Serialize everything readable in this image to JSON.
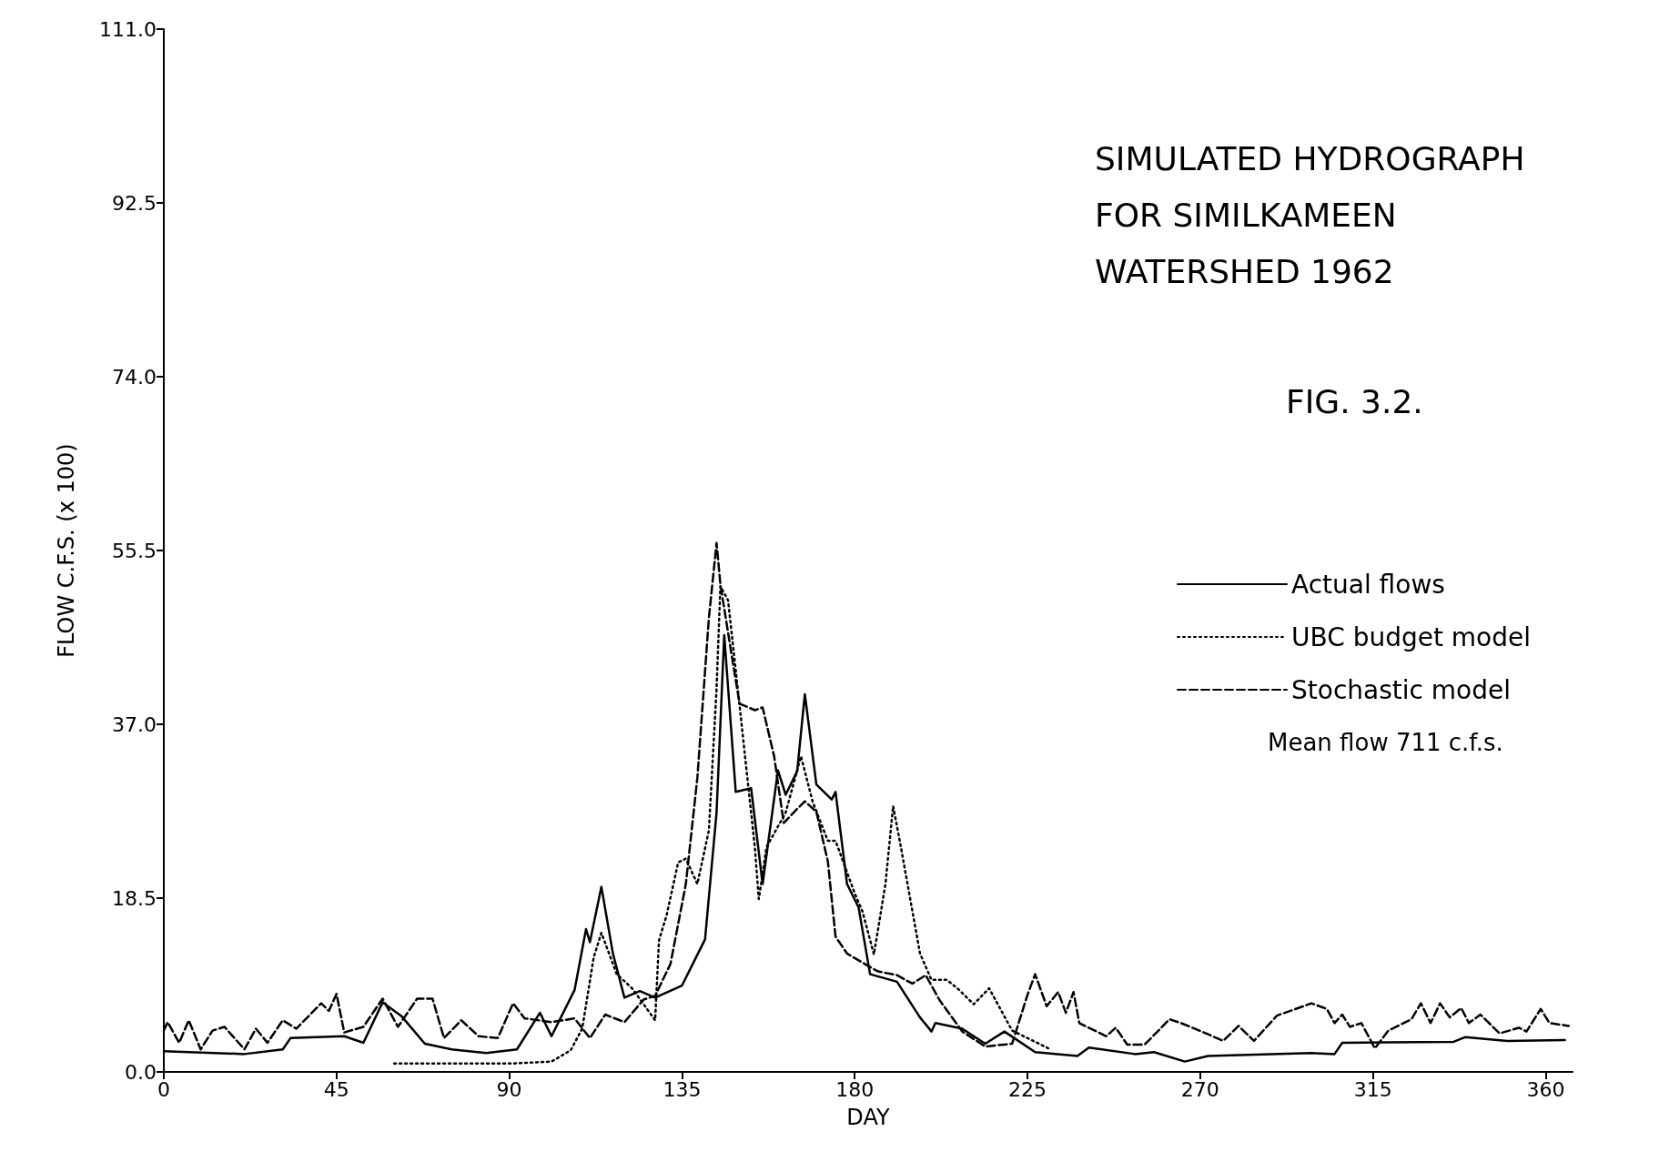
{
  "chart_data": {
    "type": "line",
    "title": "SIMULATED HYDROGRAPH FOR SIMILKAMEEN WATERSHED 1962",
    "subtitle": "FIG. 3.2.",
    "xlabel": "DAY",
    "ylabel": "FLOW C.F.S. (x 100)",
    "annotations": [
      "Mean flow 711 c.f.s."
    ],
    "xlim": [
      0,
      367
    ],
    "xticks": [
      0,
      45,
      90,
      135,
      180,
      225,
      270,
      315,
      360
    ],
    "ylim": [
      0,
      111
    ],
    "yticks": [
      {
        "value": 0,
        "label": "0.0"
      },
      {
        "value": 18.5,
        "label": "18.5"
      },
      {
        "value": 37,
        "label": "37.0"
      },
      {
        "value": 55.5,
        "label": "55.5"
      },
      {
        "value": 74,
        "label": "74.0"
      },
      {
        "value": 92.5,
        "label": "92.5"
      },
      {
        "value": 111,
        "label": "111.0"
      }
    ],
    "grid": false,
    "legend": "right",
    "marker": "none",
    "series": [
      {
        "name": "Actual flows",
        "color": "#000000",
        "line_style": "solid",
        "x": [
          0,
          21,
          31,
          33,
          47,
          52,
          57,
          62,
          68,
          75,
          84,
          92,
          98,
          101,
          107,
          110,
          111,
          114,
          117,
          120,
          124,
          128,
          135,
          141,
          144,
          146,
          149,
          153,
          156,
          160,
          162,
          165,
          167,
          170,
          174,
          175,
          178,
          181,
          184,
          191,
          197,
          200,
          201,
          208,
          214,
          219,
          227,
          238,
          241,
          253,
          258,
          266,
          272,
          299,
          305,
          307,
          336,
          339,
          350,
          365
        ],
        "values": [
          2.2,
          1.9,
          2.4,
          3.6,
          3.8,
          3.1,
          7.4,
          5.9,
          3.0,
          2.4,
          2.0,
          2.4,
          6.3,
          3.8,
          8.7,
          15.2,
          13.8,
          19.7,
          12.6,
          7.9,
          8.6,
          7.9,
          9.2,
          14.1,
          27.6,
          46.5,
          29.8,
          30.2,
          20,
          32.1,
          29.5,
          32,
          40.2,
          30.6,
          29,
          29.8,
          20,
          17.5,
          10.4,
          9.6,
          5.8,
          4.3,
          5.2,
          4.6,
          3.0,
          4.3,
          2.1,
          1.7,
          2.6,
          1.9,
          2.1,
          1.1,
          1.7,
          2.0,
          1.9,
          3.1,
          3.2,
          3.7,
          3.3,
          3.4
        ]
      },
      {
        "name": "UBC budget model",
        "color": "#000000",
        "line_style": "dotted",
        "x": [
          60,
          91,
          101,
          106,
          109,
          112,
          114,
          118,
          122,
          128,
          129,
          131,
          134,
          136,
          139,
          142,
          144,
          145,
          147,
          150,
          154,
          155,
          157,
          162,
          166,
          169,
          173,
          175,
          180,
          182,
          185,
          188,
          190,
          192,
          197,
          200,
          204,
          207,
          211,
          215,
          221,
          231
        ],
        "values": [
          0.9,
          0.9,
          1.1,
          2.3,
          4.6,
          12.2,
          14.8,
          10.4,
          8.9,
          5.5,
          14,
          16.7,
          22.3,
          22.7,
          20,
          25.7,
          40.8,
          51.7,
          50.2,
          39,
          23.8,
          18.4,
          23.9,
          27.6,
          33.6,
          28.8,
          24.6,
          24.6,
          19,
          17.1,
          12.5,
          20,
          28.3,
          24,
          12.6,
          9.8,
          9.8,
          8.8,
          7.2,
          8.9,
          4.4,
          2.4
        ]
      },
      {
        "name": "Stochastic model",
        "color": "#000000",
        "line_style": "dashed",
        "x": [
          0,
          1,
          4,
          6.5,
          9.6,
          12.7,
          15.8,
          21,
          24,
          27,
          31,
          34.5,
          41,
          43,
          45,
          47,
          52,
          57,
          61,
          66,
          70,
          73,
          77.5,
          82,
          87,
          91,
          94,
          101,
          107,
          111,
          115,
          120,
          125,
          128,
          132,
          136,
          139,
          142,
          144,
          145,
          148,
          150,
          154,
          156,
          159,
          161.5,
          165,
          167,
          170,
          173,
          175,
          178,
          183,
          186,
          191,
          195,
          198.5,
          202,
          208,
          214,
          221,
          225,
          227,
          230,
          233,
          235,
          237,
          238.5,
          245.5,
          248,
          251,
          255.5,
          262,
          265,
          271.5,
          276,
          280,
          284,
          290,
          299,
          303,
          305,
          307,
          309,
          312,
          315.5,
          319,
          325,
          327.5,
          330,
          332.5,
          335,
          338,
          340,
          343,
          348,
          353,
          355,
          358.7,
          361,
          366
        ],
        "values": [
          4.4,
          5.3,
          3.1,
          5.5,
          2.4,
          4.4,
          4.8,
          2.4,
          4.6,
          3.1,
          5.5,
          4.6,
          7.3,
          6.5,
          8.3,
          4.2,
          4.8,
          7.8,
          4.8,
          7.8,
          7.8,
          3.6,
          5.5,
          3.8,
          3.6,
          7.3,
          5.7,
          5.3,
          5.7,
          3.6,
          6.1,
          5.3,
          7.7,
          8.1,
          11.5,
          20,
          31.3,
          48.3,
          56.3,
          51.9,
          44.2,
          39.2,
          38.5,
          38.8,
          33.6,
          26.5,
          28,
          28.8,
          27.7,
          22.4,
          14.4,
          12.6,
          11.4,
          10.7,
          10.3,
          9.4,
          10.3,
          7.7,
          4.3,
          2.7,
          3.0,
          8.2,
          10.4,
          7.0,
          8.5,
          6.3,
          8.5,
          5.2,
          3.8,
          4.7,
          2.9,
          2.9,
          5.6,
          5.2,
          4.1,
          3.3,
          4.9,
          3.3,
          6.0,
          7.3,
          6.7,
          5.2,
          6.1,
          4.8,
          5.2,
          2.5,
          4.4,
          5.6,
          7.3,
          5.2,
          7.3,
          5.8,
          6.8,
          5.2,
          6.1,
          4.1,
          4.7,
          4.3,
          6.7,
          5.2,
          4.9
        ]
      }
    ]
  }
}
